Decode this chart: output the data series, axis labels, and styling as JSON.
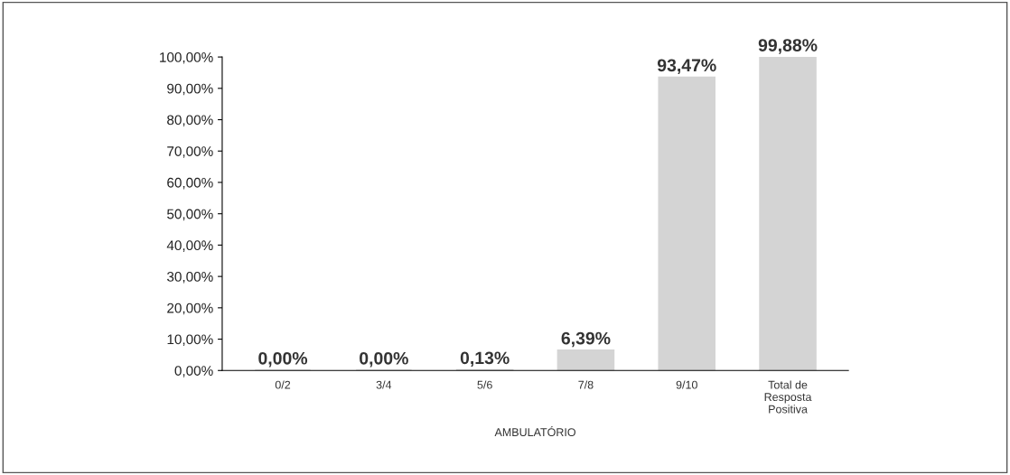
{
  "chart_data": {
    "type": "bar",
    "xlabel": "AMBULATÓRIO",
    "categories": [
      "0/2",
      "3/4",
      "5/6",
      "7/8",
      "9/10",
      "Total de\nResposta\nPositiva"
    ],
    "values": [
      0,
      0,
      0.13,
      6.39,
      93.47,
      99.88
    ],
    "value_labels": [
      "0,00%",
      "0,00%",
      "0,13%",
      "6,39%",
      "93,47%",
      "99,88%"
    ],
    "color": "#d4d4d4",
    "ylim": [
      0,
      100
    ],
    "yticks": [
      {
        "value": 0,
        "label": "0,00%"
      },
      {
        "value": 10,
        "label": "10,00%"
      },
      {
        "value": 20,
        "label": "20,00%"
      },
      {
        "value": 30,
        "label": "30,00%"
      },
      {
        "value": 40,
        "label": "40,00%"
      },
      {
        "value": 50,
        "label": "50,00%"
      },
      {
        "value": 60,
        "label": "60,00%"
      },
      {
        "value": 70,
        "label": "70,00%"
      },
      {
        "value": 80,
        "label": "80,00%"
      },
      {
        "value": 90,
        "label": "90,00%"
      },
      {
        "value": 100,
        "label": "100,00%"
      }
    ],
    "grid": false
  }
}
